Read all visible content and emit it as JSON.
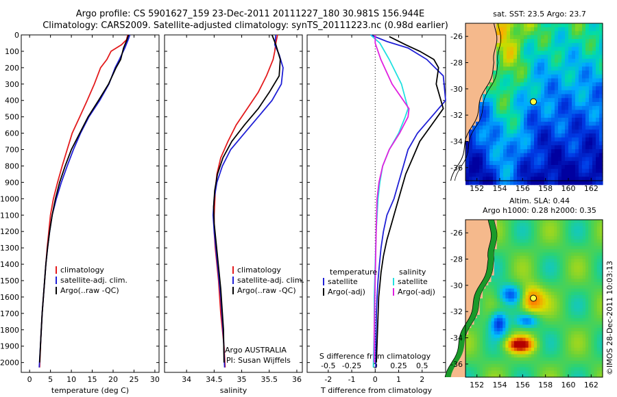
{
  "title": {
    "line1": "Argo profile: CS 5901627_159 23-Dec-2011 20111227_180 30.981S 156.944E",
    "line2": "Climatology: CARS2009. Satellite-adjusted climatology: synTS_20111223.nc (0.98d earlier)"
  },
  "credit": "Argo AUSTRALIA",
  "pi": "PI: Susan Wijffels",
  "imos_stamp": "©IMOS 28-Dec-2011 10:03:13",
  "sst_title": "sat. SST: 23.5  Argo: 23.7",
  "sla_title1": "Altim. SLA: 0.44",
  "sla_title2": "Argo h1000: 0.28 h2000: 0.35",
  "colors": {
    "climatology": "#e31a1c",
    "satellite": "#1f1fd6",
    "argo": "#000000",
    "satellite_s": "#20e0e0",
    "argo_s": "#e020e0",
    "land": "#f5b98c",
    "coast": "#006400"
  },
  "chart_data": [
    {
      "type": "line",
      "id": "temperature",
      "xlabel": "temperature (deg C)",
      "ylabel": "",
      "xlim": [
        -2,
        31
      ],
      "ylim": [
        2060,
        0
      ],
      "xticks": [
        0,
        5,
        10,
        15,
        20,
        25,
        30
      ],
      "yticks": [
        0,
        100,
        200,
        300,
        400,
        500,
        600,
        700,
        800,
        900,
        1000,
        1100,
        1200,
        1300,
        1400,
        1500,
        1600,
        1700,
        1800,
        1900,
        2000
      ],
      "legend": [
        "climatology",
        "satellite-adj. clim.",
        "Argo(..raw -QC)"
      ],
      "series": [
        {
          "name": "climatology",
          "color": "climatology",
          "x": [
            23.5,
            23.2,
            22.0,
            19.5,
            18.5,
            17.0,
            15.5,
            13.8,
            12.0,
            10.2,
            9.0,
            7.8,
            6.7,
            5.7,
            5.0,
            4.6,
            4.2,
            3.9,
            3.6,
            3.3,
            3.0,
            2.7,
            2.4
          ],
          "y": [
            0,
            30,
            60,
            100,
            150,
            200,
            300,
            400,
            500,
            600,
            700,
            800,
            900,
            1000,
            1100,
            1200,
            1300,
            1400,
            1500,
            1600,
            1700,
            1850,
            2030
          ]
        },
        {
          "name": "satellite-adj. clim.",
          "color": "satellite",
          "x": [
            24.0,
            23.6,
            22.8,
            21.5,
            20.5,
            19.0,
            16.8,
            14.2,
            12.2,
            10.5,
            9.0,
            7.6,
            6.4,
            5.4,
            4.8,
            4.3,
            3.9,
            3.6,
            3.3,
            3.0,
            2.7,
            2.3
          ],
          "y": [
            0,
            30,
            80,
            150,
            200,
            300,
            400,
            500,
            600,
            700,
            800,
            900,
            1000,
            1100,
            1200,
            1300,
            1400,
            1500,
            1600,
            1700,
            1850,
            2030
          ]
        },
        {
          "name": "Argo(..raw -QC)",
          "color": "argo",
          "x": [
            23.7,
            23.3,
            22.5,
            21.8,
            20.7,
            18.9,
            16.5,
            14.0,
            12.0,
            10.0,
            8.5,
            7.2,
            6.2,
            5.4,
            4.8,
            4.3,
            3.9,
            3.6,
            3.3,
            3.0,
            2.7,
            2.4
          ],
          "y": [
            0,
            30,
            80,
            150,
            200,
            300,
            400,
            500,
            600,
            700,
            800,
            900,
            1000,
            1100,
            1200,
            1300,
            1400,
            1500,
            1600,
            1700,
            1850,
            2000
          ]
        }
      ]
    },
    {
      "type": "line",
      "id": "salinity",
      "xlabel": "salinity",
      "ylabel": "",
      "xlim": [
        33.6,
        36.1
      ],
      "ylim": [
        2060,
        0
      ],
      "xticks": [
        34,
        34.5,
        35,
        35.5,
        36
      ],
      "legend": [
        "climatology",
        "satellite-adj. clim.",
        "Argo(..raw -QC)"
      ],
      "series": [
        {
          "name": "climatology",
          "color": "climatology",
          "x": [
            35.65,
            35.62,
            35.6,
            35.57,
            35.45,
            35.3,
            35.1,
            34.9,
            34.75,
            34.62,
            34.55,
            34.52,
            34.5,
            34.5,
            34.52,
            34.55,
            34.58,
            34.6,
            34.62,
            34.65,
            34.68,
            34.7
          ],
          "y": [
            0,
            50,
            100,
            150,
            250,
            350,
            450,
            550,
            650,
            750,
            850,
            950,
            1100,
            1200,
            1300,
            1400,
            1500,
            1600,
            1700,
            1800,
            1900,
            2030
          ]
        },
        {
          "name": "satellite-adj. clim.",
          "color": "satellite",
          "x": [
            35.62,
            35.6,
            35.68,
            35.75,
            35.72,
            35.55,
            35.3,
            35.05,
            34.8,
            34.65,
            34.55,
            34.5,
            34.48,
            34.5,
            34.53,
            34.56,
            34.59,
            34.62,
            34.64,
            34.67,
            34.69
          ],
          "y": [
            0,
            60,
            120,
            200,
            300,
            400,
            500,
            600,
            700,
            800,
            900,
            1000,
            1100,
            1200,
            1300,
            1400,
            1500,
            1600,
            1700,
            1850,
            2030
          ]
        },
        {
          "name": "Argo(..raw -QC)",
          "color": "argo",
          "x": [
            35.55,
            35.62,
            35.7,
            35.68,
            35.5,
            35.3,
            35.05,
            34.82,
            34.66,
            34.56,
            34.51,
            34.49,
            34.5,
            34.53,
            34.56,
            34.59,
            34.62,
            34.64,
            34.67,
            34.68
          ],
          "y": [
            0,
            60,
            150,
            250,
            350,
            450,
            550,
            650,
            750,
            850,
            950,
            1050,
            1150,
            1250,
            1350,
            1450,
            1550,
            1650,
            1800,
            2000
          ]
        }
      ]
    },
    {
      "type": "line",
      "id": "differences",
      "xlabel": "T difference from climatology",
      "x2label": "S difference from climatology",
      "xlim": [
        -2.9,
        3.0
      ],
      "ylim": [
        2060,
        0
      ],
      "xticks": [
        -2,
        -1,
        0,
        1,
        2
      ],
      "x2ticks": [
        "-0.5",
        "-0.25",
        "0",
        "0.25",
        "0.5"
      ],
      "legend_headers": [
        "temperature",
        "salinity"
      ],
      "legend": [
        "satellite",
        "Argo(-adj)",
        "satellite",
        "Argo(-adj)"
      ],
      "series": [
        {
          "name": "satellite",
          "color": "satellite",
          "x": [
            -0.2,
            0.5,
            1.4,
            2.2,
            2.9,
            3.0,
            2.4,
            1.8,
            1.4,
            1.2,
            1.0,
            0.8,
            0.5,
            0.35,
            0.25,
            0.18,
            0.12,
            0.08,
            0.05,
            0.03,
            0.02
          ],
          "y": [
            0,
            40,
            80,
            150,
            250,
            400,
            500,
            600,
            700,
            800,
            900,
            1000,
            1100,
            1200,
            1300,
            1400,
            1500,
            1600,
            1700,
            1850,
            2030
          ]
        },
        {
          "name": "Argo(-adj)",
          "color": "argo",
          "x": [
            0.6,
            1.3,
            1.9,
            2.5,
            2.7,
            2.6,
            2.9,
            2.4,
            1.9,
            1.6,
            1.3,
            1.1,
            0.9,
            0.7,
            0.5,
            0.35,
            0.25,
            0.15,
            0.1,
            0.05
          ],
          "y": [
            10,
            60,
            100,
            150,
            200,
            300,
            450,
            550,
            650,
            750,
            850,
            950,
            1050,
            1150,
            1250,
            1350,
            1450,
            1600,
            1800,
            2000
          ]
        },
        {
          "name": "satellite",
          "color": "satellite_s",
          "x": [
            -0.05,
            0.05,
            0.15,
            0.28,
            0.35,
            0.32,
            0.25,
            0.15,
            0.08,
            0.05,
            0.03,
            0.01,
            0.0,
            -0.01,
            -0.01,
            -0.02
          ],
          "y": [
            0,
            50,
            150,
            300,
            450,
            500,
            600,
            700,
            800,
            900,
            1000,
            1200,
            1400,
            1600,
            1800,
            2030
          ]
        },
        {
          "name": "Argo(-adj)",
          "color": "argo_s",
          "x": [
            0.0,
            0.0,
            0.06,
            0.18,
            0.36,
            0.35,
            0.26,
            0.15,
            0.08,
            0.04,
            0.02,
            0.01,
            0.0,
            -0.01,
            -0.01
          ],
          "y": [
            0,
            50,
            150,
            300,
            450,
            500,
            600,
            700,
            800,
            900,
            1000,
            1200,
            1500,
            1800,
            2000
          ]
        }
      ]
    },
    {
      "type": "heatmap",
      "id": "sst_map",
      "xlim": [
        151,
        163
      ],
      "ylim": [
        -37,
        -25
      ],
      "xticks": [
        152,
        154,
        156,
        158,
        160,
        162
      ],
      "yticks": [
        -26,
        -28,
        -30,
        -32,
        -34,
        -36
      ],
      "marker": {
        "lon": 156.944,
        "lat": -30.981
      }
    },
    {
      "type": "heatmap",
      "id": "sla_map",
      "xlim": [
        151,
        163
      ],
      "ylim": [
        -37,
        -25
      ],
      "xticks": [
        152,
        154,
        156,
        158,
        160,
        162
      ],
      "yticks": [
        -26,
        -28,
        -30,
        -32,
        -34,
        -36
      ],
      "marker": {
        "lon": 156.944,
        "lat": -30.981
      }
    }
  ]
}
